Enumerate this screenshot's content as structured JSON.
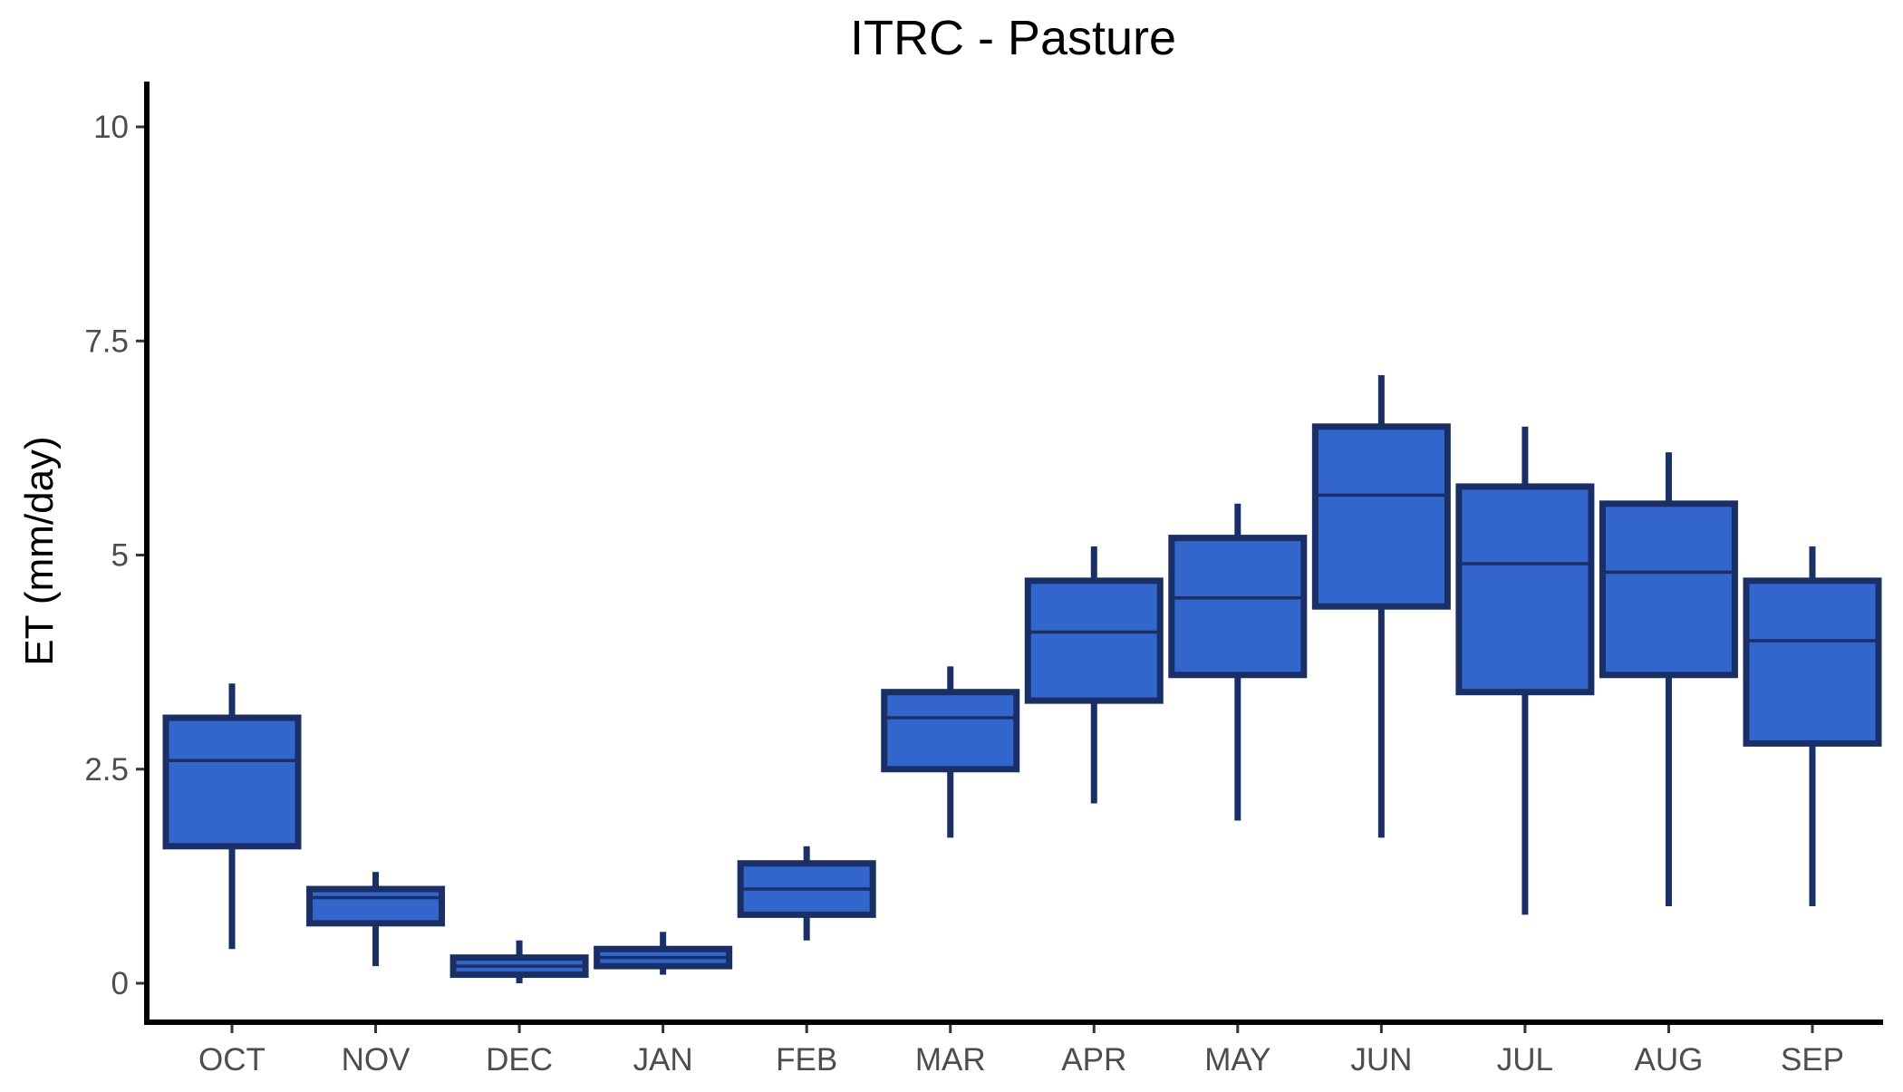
{
  "chart_data": {
    "type": "boxplot",
    "title": "ITRC - Pasture",
    "xlabel": "",
    "ylabel": "ET (mm/day)",
    "ylim": [
      -0.5,
      10.5
    ],
    "y_ticks": [
      0,
      2.5,
      5,
      7.5,
      10
    ],
    "y_tick_labels": [
      "0",
      "2.5",
      "5",
      "7.5",
      "10"
    ],
    "grid": false,
    "legend": "none",
    "categories": [
      "OCT",
      "NOV",
      "DEC",
      "JAN",
      "FEB",
      "MAR",
      "APR",
      "MAY",
      "JUN",
      "JUL",
      "AUG",
      "SEP"
    ],
    "boxes": [
      {
        "category": "OCT",
        "whisker_low": 0.4,
        "q1": 1.6,
        "median": 2.6,
        "q3": 3.1,
        "whisker_high": 3.5
      },
      {
        "category": "NOV",
        "whisker_low": 0.2,
        "q1": 0.7,
        "median": 1.0,
        "q3": 1.1,
        "whisker_high": 1.3
      },
      {
        "category": "DEC",
        "whisker_low": 0.0,
        "q1": 0.1,
        "median": 0.2,
        "q3": 0.3,
        "whisker_high": 0.5
      },
      {
        "category": "JAN",
        "whisker_low": 0.1,
        "q1": 0.2,
        "median": 0.3,
        "q3": 0.4,
        "whisker_high": 0.6
      },
      {
        "category": "FEB",
        "whisker_low": 0.5,
        "q1": 0.8,
        "median": 1.1,
        "q3": 1.4,
        "whisker_high": 1.6
      },
      {
        "category": "MAR",
        "whisker_low": 1.7,
        "q1": 2.5,
        "median": 3.1,
        "q3": 3.4,
        "whisker_high": 3.7
      },
      {
        "category": "APR",
        "whisker_low": 2.1,
        "q1": 3.3,
        "median": 4.1,
        "q3": 4.7,
        "whisker_high": 5.1
      },
      {
        "category": "MAY",
        "whisker_low": 1.9,
        "q1": 3.6,
        "median": 4.5,
        "q3": 5.2,
        "whisker_high": 5.6
      },
      {
        "category": "JUN",
        "whisker_low": 1.7,
        "q1": 4.4,
        "median": 5.7,
        "q3": 6.5,
        "whisker_high": 7.1
      },
      {
        "category": "JUL",
        "whisker_low": 0.8,
        "q1": 3.4,
        "median": 4.9,
        "q3": 5.8,
        "whisker_high": 6.5
      },
      {
        "category": "AUG",
        "whisker_low": 0.9,
        "q1": 3.6,
        "median": 4.8,
        "q3": 5.6,
        "whisker_high": 6.2
      },
      {
        "category": "SEP",
        "whisker_low": 0.9,
        "q1": 2.8,
        "median": 4.0,
        "q3": 4.7,
        "whisker_high": 5.1
      }
    ],
    "colors": {
      "box_fill": "#3366cc",
      "box_outline": "#1a2f66",
      "axis": "#000000",
      "tick_label": "#4d4d4d",
      "background": "#ffffff"
    }
  }
}
